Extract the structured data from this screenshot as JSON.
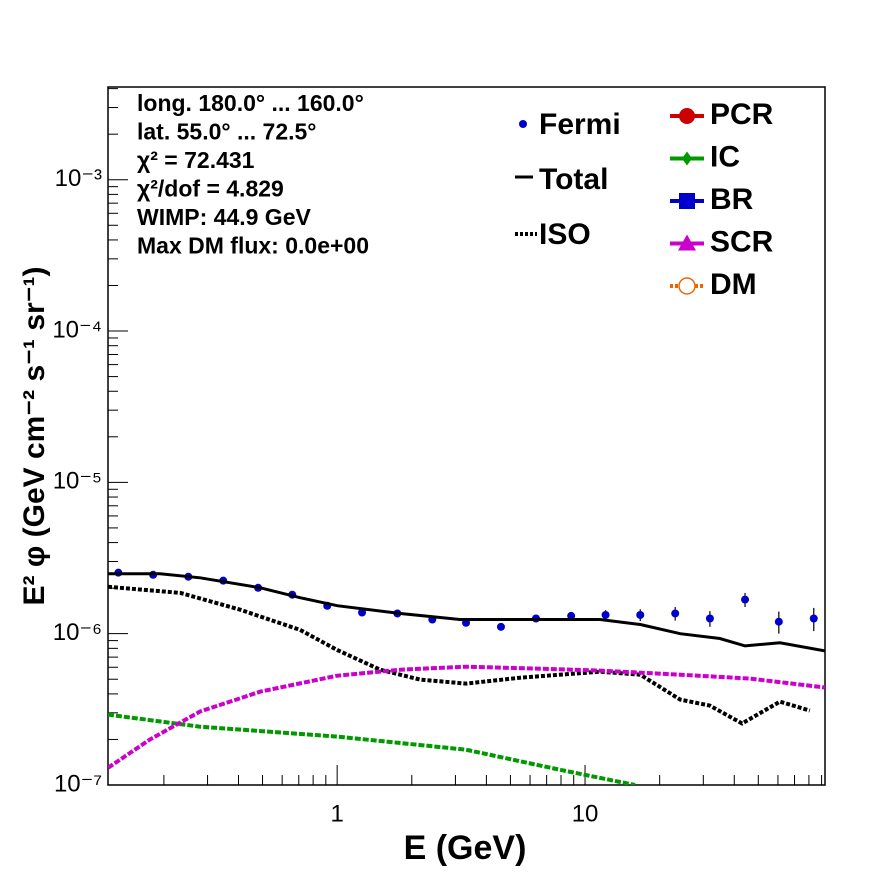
{
  "chart_data": {
    "type": "line",
    "xlabel": "E (GeV)",
    "ylabel": "E² φ (GeV cm⁻² s⁻¹ sr⁻¹)",
    "log_x": true,
    "log_y": true,
    "xlim": [
      0.119,
      92.9
    ],
    "ylim": [
      1e-07,
      0.0041
    ],
    "xticks": [
      1,
      10
    ],
    "yticks": [
      {
        "value": 1e-07,
        "label": "10⁻⁷"
      },
      {
        "value": 1e-06,
        "label": "10⁻⁶"
      },
      {
        "value": 1e-05,
        "label": "10⁻⁵"
      },
      {
        "value": 0.0001,
        "label": "10⁻⁴"
      },
      {
        "value": 0.001,
        "label": "10⁻³"
      }
    ],
    "annotations": [
      "long. 180.0° ... 160.0°",
      "lat. 55.0° ... 72.5°",
      "χ² = 72.431",
      "χ²/dof = 4.829",
      "WIMP: 44.9 GeV",
      "Max DM flux: 0.0e+00"
    ],
    "series": [
      {
        "name": "Fermi",
        "color": "#0000cc",
        "marker": "point",
        "x": [
          0.131,
          0.181,
          0.251,
          0.347,
          0.48,
          0.659,
          0.912,
          1.26,
          1.75,
          2.42,
          3.31,
          4.58,
          6.34,
          8.79,
          12.1,
          16.7,
          23.1,
          31.9,
          44.2,
          60.5,
          83.7
        ],
        "values": [
          2.53e-06,
          2.45e-06,
          2.38e-06,
          2.24e-06,
          2.01e-06,
          1.81e-06,
          1.53e-06,
          1.38e-06,
          1.36e-06,
          1.24e-06,
          1.18e-06,
          1.11e-06,
          1.26e-06,
          1.31e-06,
          1.33e-06,
          1.33e-06,
          1.36e-06,
          1.26e-06,
          1.68e-06,
          1.2e-06,
          1.26e-06
        ],
        "errors": [
          5e-08,
          5e-08,
          5e-08,
          5e-08,
          5e-08,
          5e-08,
          5e-08,
          5e-08,
          5e-08,
          5e-08,
          5e-08,
          5e-08,
          6e-08,
          8e-08,
          1e-07,
          1.2e-07,
          1.4e-07,
          1.5e-07,
          1.8e-07,
          2e-07,
          2.2e-07
        ]
      },
      {
        "name": "Total",
        "color": "#000000",
        "marker": "solid",
        "x": [
          0.119,
          0.193,
          0.28,
          0.49,
          0.709,
          1,
          1.8,
          3.13,
          5.47,
          11.5,
          16.7,
          24.2,
          35.0,
          44.2,
          61.1,
          92.9
        ],
        "values": [
          2.49e-06,
          2.49e-06,
          2.34e-06,
          2.01e-06,
          1.73e-06,
          1.53e-06,
          1.36e-06,
          1.24e-06,
          1.24e-06,
          1.24e-06,
          1.15e-06,
          1e-06,
          9.3e-07,
          8.3e-07,
          8.7e-07,
          7.7e-07
        ]
      },
      {
        "name": "ISO",
        "color": "#000000",
        "marker": "dotted",
        "x": [
          0.119,
          0.233,
          0.406,
          0.709,
          1,
          1.49,
          2.16,
          3.31,
          5.47,
          11.5,
          16.7,
          24.2,
          31.9,
          43.0,
          61.1,
          80.7
        ],
        "values": [
          2.04e-06,
          1.86e-06,
          1.44e-06,
          1.06e-06,
          7.8e-07,
          5.78e-07,
          4.97e-07,
          4.68e-07,
          5.12e-07,
          5.61e-07,
          5.36e-07,
          3.67e-07,
          3.35e-07,
          2.55e-07,
          3.56e-07,
          3.1e-07
        ]
      },
      {
        "name": "PCR",
        "color": "#cc0000",
        "marker": "circle"
      },
      {
        "name": "IC",
        "color": "#009900",
        "marker": "star",
        "x": [
          0.119,
          0.28,
          1,
          3.31,
          7.93,
          15.9
        ],
        "values": [
          2.92e-07,
          2.43e-07,
          2.09e-07,
          1.71e-07,
          1.26e-07,
          1e-07
        ]
      },
      {
        "name": "BR",
        "color": "#0000cc",
        "marker": "square"
      },
      {
        "name": "SCR",
        "color": "#cc00cc",
        "marker": "triangle",
        "x": [
          0.119,
          0.176,
          0.28,
          0.49,
          1,
          1.8,
          3.31,
          6.59,
          11.5,
          24.2,
          46.3,
          92.9
        ],
        "values": [
          1.3e-07,
          2e-07,
          3.06e-07,
          4.14e-07,
          5.28e-07,
          5.78e-07,
          6.05e-07,
          5.87e-07,
          5.7e-07,
          5.36e-07,
          5.05e-07,
          4.41e-07
        ]
      },
      {
        "name": "DM",
        "color": "#ee6600",
        "marker": "open-circle"
      }
    ]
  }
}
